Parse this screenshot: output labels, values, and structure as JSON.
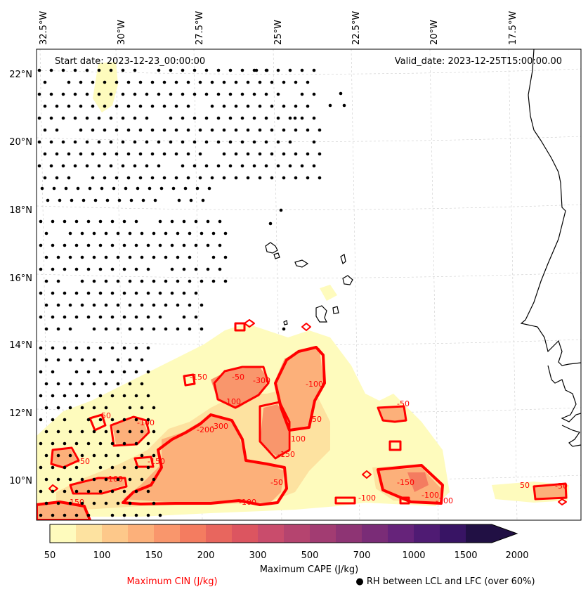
{
  "header": {
    "start_date": "Start date: 2023-12-23_00:00:00",
    "valid_date": "Valid_date: 2023-12-25T15:00:00.00"
  },
  "axes": {
    "lon_labels": [
      "32.5°W",
      "30°W",
      "27.5°W",
      "25°W",
      "22.5°W",
      "20°W",
      "17.5°W"
    ],
    "lat_labels": [
      "22°N",
      "20°N",
      "18°N",
      "16°N",
      "14°N",
      "12°N",
      "10°N"
    ]
  },
  "colorbar": {
    "ticks": [
      "50",
      "100",
      "150",
      "200",
      "300",
      "500",
      "700",
      "1000",
      "1500",
      "2000"
    ],
    "label": "Maximum CAPE (J/kg)",
    "colors": [
      "#fefbbd",
      "#fde2a0",
      "#fdc88a",
      "#fcb07a",
      "#f9966c",
      "#f47c60",
      "#e8665e",
      "#dc5560",
      "#c94c6c",
      "#b5446f",
      "#a23c72",
      "#8e3474",
      "#7a2c77",
      "#66237a",
      "#4f1b73",
      "#381464",
      "#211044"
    ]
  },
  "legend": {
    "cin": "Maximum CIN (J/kg)",
    "rh": "● RH between LCL and LFC (over 60%)",
    "cin_color": "#ff0000"
  },
  "contour_labels": [
    "-50",
    "-100",
    "-150",
    "-200",
    "-300",
    "-50",
    "-100",
    "-150",
    "-50",
    "-100",
    "-150",
    "50",
    "-50",
    "-150",
    "-100",
    "-50",
    "-100",
    "-50",
    "-100",
    "-300",
    "-100",
    "-150",
    "-50",
    "-100",
    "-100"
  ]
}
